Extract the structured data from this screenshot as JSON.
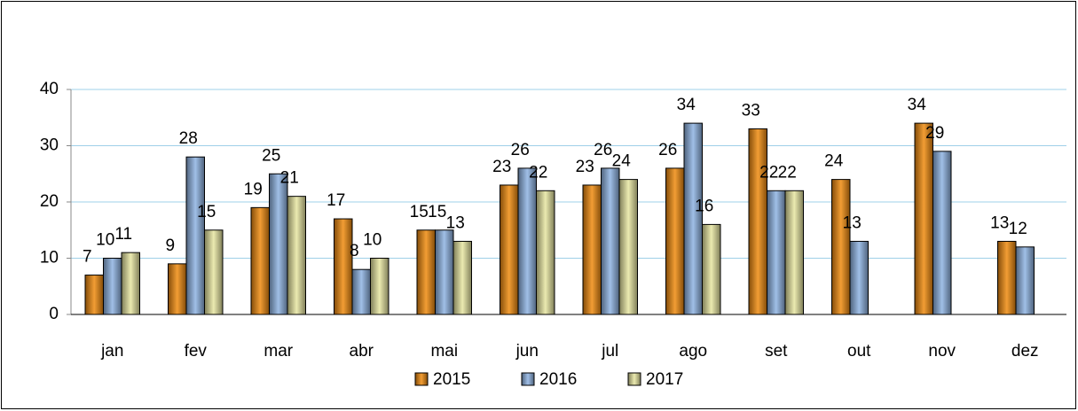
{
  "chart_data": {
    "type": "bar",
    "categories": [
      "jan",
      "fev",
      "mar",
      "abr",
      "mai",
      "jun",
      "jul",
      "ago",
      "set",
      "out",
      "nov",
      "dez"
    ],
    "series": [
      {
        "name": "2015",
        "color": "#f08c10",
        "values": [
          7,
          9,
          19,
          17,
          15,
          23,
          23,
          26,
          33,
          24,
          34,
          13
        ]
      },
      {
        "name": "2016",
        "color": "#8fb4e3",
        "values": [
          10,
          28,
          25,
          8,
          15,
          26,
          26,
          34,
          22,
          13,
          29,
          12
        ]
      },
      {
        "name": "2017",
        "color": "#e8e6a2",
        "values": [
          11,
          15,
          21,
          10,
          13,
          22,
          24,
          16,
          22,
          null,
          null,
          null
        ]
      }
    ],
    "ylim": [
      0,
      40
    ],
    "yticks": [
      0,
      10,
      20,
      30,
      40
    ],
    "grid": true,
    "legend": "bottom"
  }
}
